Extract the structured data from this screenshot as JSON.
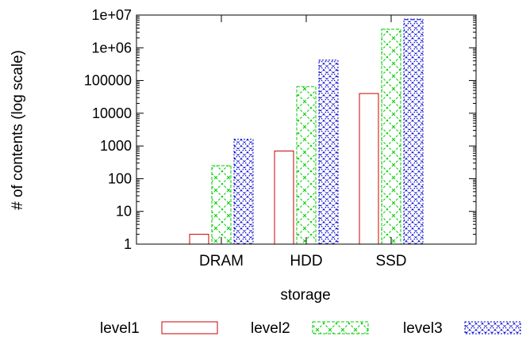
{
  "chart_data": {
    "type": "bar",
    "title": "",
    "xlabel": "storage",
    "ylabel": "# of contents (log scale)",
    "y_scale": "log",
    "ylim": [
      1,
      10000000
    ],
    "y_ticks": [
      {
        "value": 1,
        "label": "1"
      },
      {
        "value": 10,
        "label": "10"
      },
      {
        "value": 100,
        "label": "100"
      },
      {
        "value": 1000,
        "label": "1000"
      },
      {
        "value": 10000,
        "label": "10000"
      },
      {
        "value": 100000,
        "label": "100000"
      },
      {
        "value": 1000000,
        "label": "1e+06"
      },
      {
        "value": 10000000,
        "label": "1e+07"
      }
    ],
    "categories": [
      "DRAM",
      "HDD",
      "SSD"
    ],
    "series": [
      {
        "name": "level1",
        "color": "#cc0000",
        "pattern": "empty",
        "values": [
          2,
          700,
          40000
        ]
      },
      {
        "name": "level2",
        "color": "#00cc00",
        "pattern": "crosshatch",
        "values": [
          250,
          65000,
          3700000
        ]
      },
      {
        "name": "level3",
        "color": "#0000cc",
        "pattern": "dense-crosshatch",
        "values": [
          1600,
          420000,
          7500000
        ]
      }
    ],
    "grid": false,
    "legend_position": "bottom"
  }
}
